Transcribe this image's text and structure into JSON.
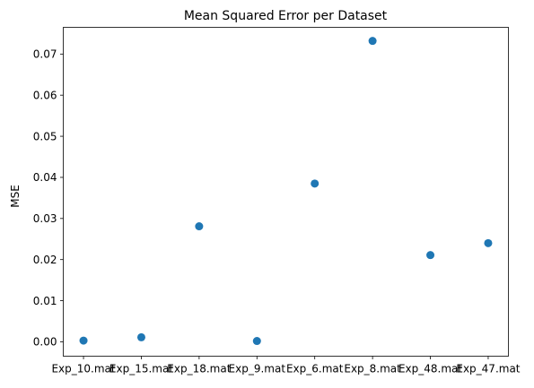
{
  "chart_data": {
    "type": "scatter",
    "title": "Mean Squared Error per Dataset",
    "xlabel": "",
    "ylabel": "MSE",
    "categories": [
      "Exp_10.mat",
      "Exp_15.mat",
      "Exp_18.mat",
      "Exp_9.mat",
      "Exp_6.mat",
      "Exp_8.mat",
      "Exp_48.mat",
      "Exp_47.mat"
    ],
    "values": [
      0.0003,
      0.0011,
      0.0281,
      0.0002,
      0.0385,
      0.0732,
      0.0211,
      0.024
    ],
    "ylim": [
      -0.0035,
      0.0765
    ],
    "yticks": [
      0.0,
      0.01,
      0.02,
      0.03,
      0.04,
      0.05,
      0.06,
      0.07
    ],
    "ytick_labels": [
      "0.00",
      "0.01",
      "0.02",
      "0.03",
      "0.04",
      "0.05",
      "0.06",
      "0.07"
    ],
    "marker_color": "#1f77b4",
    "grid": false,
    "legend": "none"
  }
}
